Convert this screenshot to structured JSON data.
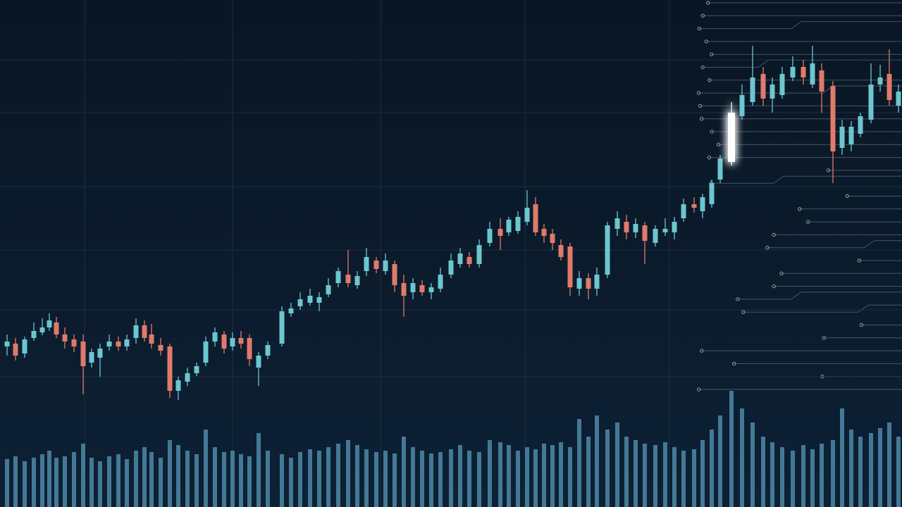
{
  "chart_data": {
    "type": "candlestick",
    "xlim": [
      0,
      1280
    ],
    "ylim": [
      0,
      720
    ],
    "xticks": [
      120,
      330,
      540,
      745,
      950
    ],
    "yticks": [
      635,
      560,
      455,
      365,
      280,
      185
    ],
    "grid": true,
    "up_color": "#6cc6cf",
    "down_color": "#e07a6a",
    "volume_color": "#4d8aa8",
    "highlight_color": "#ffffff",
    "highlight_index": 79,
    "reference_line": 560,
    "x": [
      10,
      22,
      35,
      48,
      60,
      70,
      80,
      92,
      105,
      118,
      130,
      142,
      155,
      168,
      180,
      193,
      205,
      215,
      228,
      241,
      253,
      266,
      279,
      292,
      305,
      318,
      330,
      342,
      354,
      367,
      380,
      400,
      413,
      426,
      440,
      453,
      466,
      480,
      494,
      507,
      520,
      534,
      547,
      560,
      573,
      586,
      599,
      612,
      625,
      640,
      653,
      666,
      680,
      695,
      710,
      722,
      735,
      748,
      760,
      772,
      784,
      796,
      809,
      822,
      835,
      847,
      862,
      876,
      889,
      902,
      915,
      930,
      944,
      957,
      970,
      985,
      997,
      1010,
      1022,
      1038,
      1053,
      1068,
      1083,
      1096,
      1110,
      1125,
      1140,
      1153,
      1166,
      1182,
      1195,
      1208,
      1221,
      1236,
      1249,
      1262,
      1275
    ],
    "open": [
      228,
      232,
      218,
      240,
      248,
      255,
      262,
      245,
      238,
      235,
      205,
      212,
      228,
      235,
      228,
      240,
      258,
      245,
      230,
      228,
      165,
      178,
      190,
      205,
      235,
      245,
      228,
      240,
      240,
      198,
      215,
      232,
      275,
      285,
      290,
      290,
      302,
      318,
      330,
      315,
      335,
      350,
      335,
      345,
      318,
      305,
      315,
      305,
      310,
      330,
      345,
      355,
      345,
      375,
      395,
      390,
      392,
      405,
      430,
      395,
      388,
      372,
      370,
      310,
      325,
      310,
      330,
      395,
      405,
      390,
      400,
      375,
      390,
      390,
      410,
      430,
      420,
      430,
      465,
      490,
      555,
      575,
      615,
      580,
      585,
      610,
      625,
      600,
      620,
      598,
      510,
      515,
      530,
      550,
      600,
      615,
      570
    ],
    "close": [
      235,
      215,
      238,
      250,
      255,
      265,
      245,
      235,
      228,
      200,
      220,
      225,
      235,
      228,
      238,
      258,
      240,
      232,
      222,
      165,
      180,
      190,
      200,
      235,
      248,
      225,
      240,
      232,
      210,
      215,
      230,
      278,
      282,
      295,
      300,
      298,
      315,
      335,
      318,
      328,
      355,
      338,
      350,
      315,
      300,
      318,
      305,
      312,
      330,
      350,
      360,
      345,
      372,
      395,
      385,
      408,
      412,
      425,
      390,
      385,
      375,
      355,
      312,
      325,
      310,
      330,
      400,
      410,
      390,
      402,
      378,
      395,
      395,
      405,
      430,
      425,
      440,
      460,
      495,
      560,
      585,
      610,
      580,
      600,
      615,
      625,
      610,
      630,
      590,
      505,
      540,
      540,
      555,
      600,
      610,
      578,
      590
    ],
    "high": [
      245,
      240,
      242,
      262,
      268,
      275,
      270,
      255,
      245,
      245,
      225,
      232,
      245,
      242,
      245,
      268,
      265,
      260,
      240,
      232,
      185,
      198,
      205,
      242,
      255,
      250,
      248,
      250,
      245,
      220,
      235,
      285,
      290,
      305,
      310,
      305,
      325,
      340,
      365,
      335,
      368,
      355,
      360,
      350,
      330,
      325,
      322,
      318,
      340,
      360,
      368,
      362,
      380,
      405,
      410,
      412,
      420,
      450,
      440,
      402,
      395,
      380,
      375,
      335,
      332,
      340,
      405,
      420,
      415,
      410,
      405,
      400,
      410,
      412,
      438,
      440,
      445,
      465,
      500,
      575,
      600,
      655,
      625,
      610,
      625,
      640,
      635,
      655,
      630,
      605,
      550,
      548,
      560,
      630,
      628,
      650,
      600
    ],
    "low": [
      215,
      208,
      212,
      236,
      244,
      250,
      240,
      225,
      220,
      160,
      198,
      185,
      222,
      222,
      222,
      232,
      235,
      225,
      215,
      155,
      152,
      172,
      186,
      200,
      228,
      218,
      222,
      225,
      200,
      172,
      210,
      228,
      270,
      280,
      286,
      278,
      298,
      312,
      312,
      310,
      328,
      332,
      330,
      305,
      270,
      295,
      300,
      295,
      305,
      325,
      340,
      340,
      340,
      370,
      365,
      385,
      388,
      400,
      385,
      375,
      365,
      350,
      300,
      300,
      295,
      300,
      325,
      385,
      380,
      382,
      345,
      370,
      385,
      380,
      405,
      418,
      410,
      425,
      460,
      485,
      550,
      570,
      570,
      560,
      580,
      605,
      600,
      595,
      560,
      460,
      500,
      505,
      525,
      545,
      590,
      570,
      560
    ],
    "volume": [
      68,
      72,
      65,
      70,
      75,
      80,
      70,
      72,
      78,
      90,
      70,
      65,
      72,
      75,
      68,
      80,
      85,
      78,
      70,
      95,
      88,
      80,
      75,
      110,
      85,
      78,
      80,
      75,
      72,
      105,
      80,
      75,
      70,
      78,
      82,
      80,
      85,
      90,
      95,
      88,
      82,
      78,
      80,
      76,
      100,
      85,
      80,
      76,
      78,
      82,
      88,
      80,
      78,
      95,
      92,
      88,
      80,
      85,
      82,
      90,
      88,
      92,
      85,
      125,
      100,
      130,
      110,
      120,
      100,
      95,
      90,
      88,
      92,
      85,
      80,
      82,
      95,
      110,
      130,
      165,
      140,
      120,
      100,
      92,
      85,
      80,
      88,
      82,
      90,
      95,
      140,
      110,
      100,
      105,
      112,
      120,
      100
    ]
  }
}
